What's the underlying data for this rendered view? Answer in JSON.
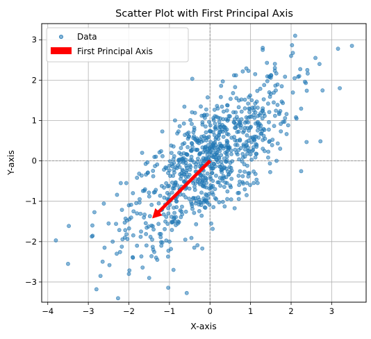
{
  "chart_data": {
    "type": "scatter",
    "title": "Scatter Plot with First Principal Axis",
    "xlabel": "X-axis",
    "ylabel": "Y-axis",
    "xlim": [
      -4.15,
      3.85
    ],
    "ylim": [
      -3.5,
      3.4
    ],
    "xticks": [
      -4,
      -3,
      -2,
      -1,
      0,
      1,
      2,
      3
    ],
    "yticks": [
      -3,
      -2,
      -1,
      0,
      1,
      2,
      3
    ],
    "grid": true,
    "legend_position": "top-left",
    "reference_lines": {
      "x": 0,
      "y": 0,
      "style": "dashed",
      "color": "#808080"
    },
    "series": [
      {
        "name": "Data",
        "kind": "scatter",
        "color": "#1f77b4",
        "alpha": 0.55,
        "x": [
          -3.8,
          -3.5,
          -2.9,
          -2.7,
          -2.8,
          -2.6,
          -2.5,
          -2.4,
          -2.3,
          -2.2,
          -2.1,
          -2.0,
          -2.0,
          -1.9,
          -1.8,
          -1.8,
          -1.7,
          -1.5,
          -1.4,
          -1.3,
          -1.2,
          -1.1,
          -1.0,
          -0.9,
          3.2,
          3.5,
          2.7,
          2.6,
          2.4,
          2.2,
          2.1,
          2.0,
          1.6,
          1.3,
          1.3
        ],
        "y": [
          -1.97,
          -2.55,
          -1.6,
          -2.85,
          -3.18,
          -2.15,
          -1.55,
          -2.0,
          -2.3,
          -0.55,
          -1.9,
          -1.1,
          -2.8,
          -0.8,
          -2.1,
          -1.3,
          -1.75,
          -2.9,
          -2.2,
          -2.45,
          -2.1,
          -1.5,
          -2.0,
          -2.7,
          1.8,
          2.85,
          2.4,
          2.55,
          2.25,
          2.1,
          3.1,
          2.6,
          2.3,
          2.75,
          2.8
        ]
      },
      {
        "name": "First Principal Axis",
        "kind": "arrow",
        "color": "#ff0000",
        "x": [
          0.0,
          -1.42
        ],
        "y": [
          0.0,
          -1.42
        ]
      }
    ],
    "cloud": {
      "count": 840,
      "mean": [
        0.0,
        0.0
      ],
      "std": [
        1.0,
        1.0
      ],
      "correlation": 0.7
    }
  }
}
